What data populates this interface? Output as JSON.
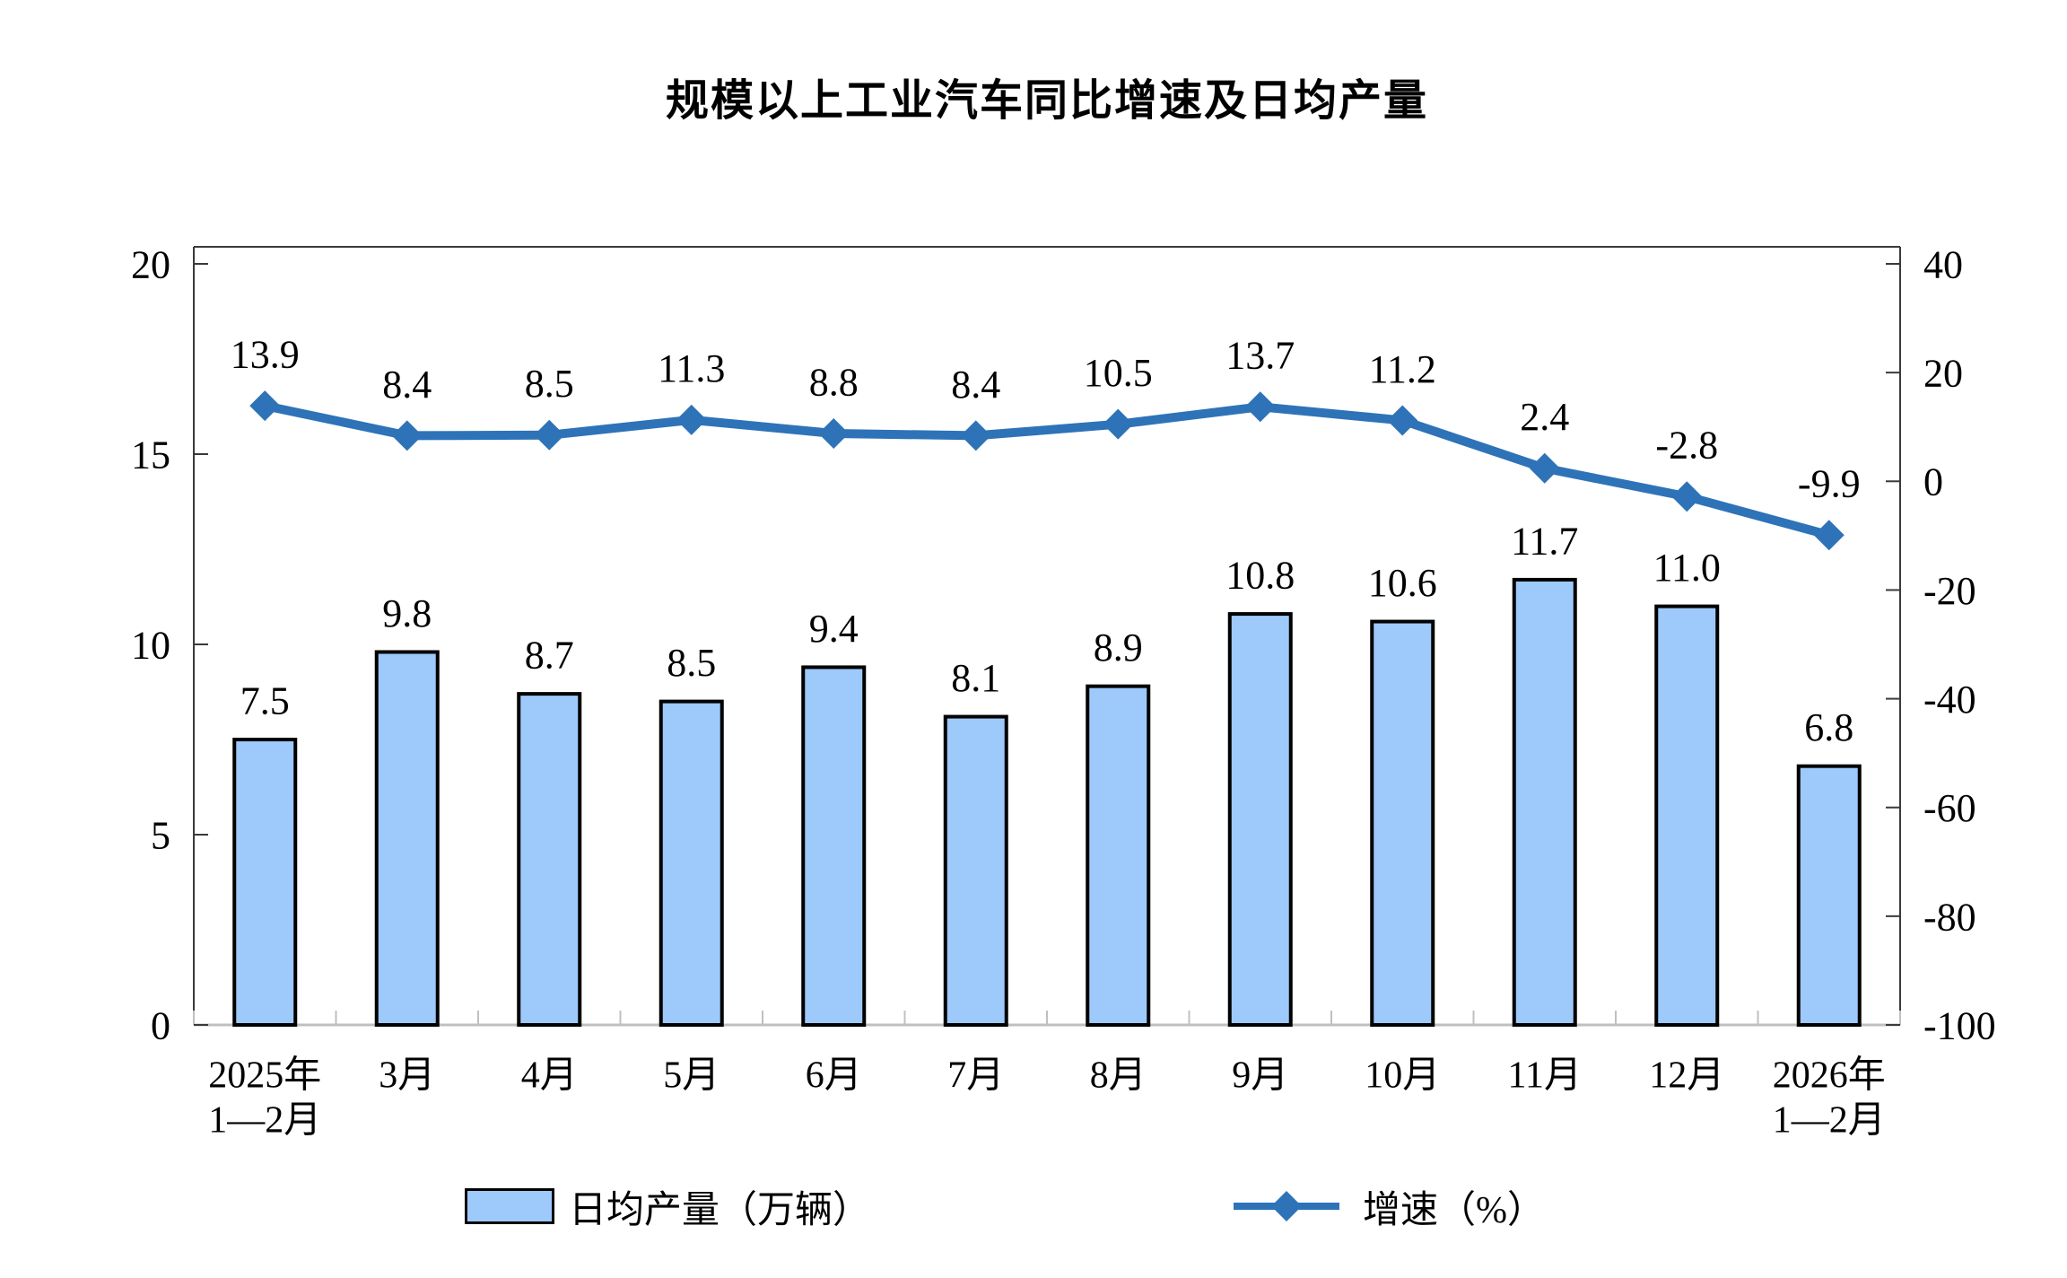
{
  "chart_data": {
    "type": "combo",
    "title": "规模以上工业汽车同比增速及日均产量",
    "categories": [
      [
        "2025年",
        "1—2月"
      ],
      [
        "3月"
      ],
      [
        "4月"
      ],
      [
        "5月"
      ],
      [
        "6月"
      ],
      [
        "7月"
      ],
      [
        "8月"
      ],
      [
        "9月"
      ],
      [
        "10月"
      ],
      [
        "11月"
      ],
      [
        "12月"
      ],
      [
        "2026年",
        "1—2月"
      ]
    ],
    "series": [
      {
        "name": "日均产量（万辆）",
        "type": "bar",
        "axis": "left",
        "values": [
          7.5,
          9.8,
          8.7,
          8.5,
          9.4,
          8.1,
          8.9,
          10.8,
          10.6,
          11.7,
          11.0,
          6.8
        ],
        "labels": [
          "7.5",
          "9.8",
          "8.7",
          "8.5",
          "9.4",
          "8.1",
          "8.9",
          "10.8",
          "10.6",
          "11.7",
          "11.0",
          "6.8"
        ]
      },
      {
        "name": "增速（%）",
        "type": "line",
        "axis": "right",
        "marker": "diamond",
        "values": [
          13.9,
          8.4,
          8.5,
          11.3,
          8.8,
          8.4,
          10.5,
          13.7,
          11.2,
          2.4,
          -2.8,
          -9.9
        ],
        "labels": [
          "13.9",
          "8.4",
          "8.5",
          "11.3",
          "8.8",
          "8.4",
          "10.5",
          "13.7",
          "11.2",
          "2.4",
          "-2.8",
          "-9.9"
        ]
      }
    ],
    "axes": {
      "left": {
        "min": 0,
        "max": 20,
        "ticks": [
          "0",
          "5",
          "10",
          "15",
          "20"
        ]
      },
      "right": {
        "min": -100,
        "max": 40,
        "ticks": [
          "40",
          "20",
          "0",
          "-20",
          "-40",
          "-60",
          "-80",
          "-100"
        ]
      }
    },
    "legend": {
      "position": "bottom",
      "items": [
        "日均产量（万辆）",
        "增速（%）"
      ]
    },
    "grid": false,
    "colors": {
      "bar_fill": "#9DC9FB",
      "bar_border": "#000000",
      "line": "#2E73B8",
      "axis_dark": "#3A3A3A",
      "axis_light": "#C0C0C0",
      "text": "#000000"
    }
  }
}
